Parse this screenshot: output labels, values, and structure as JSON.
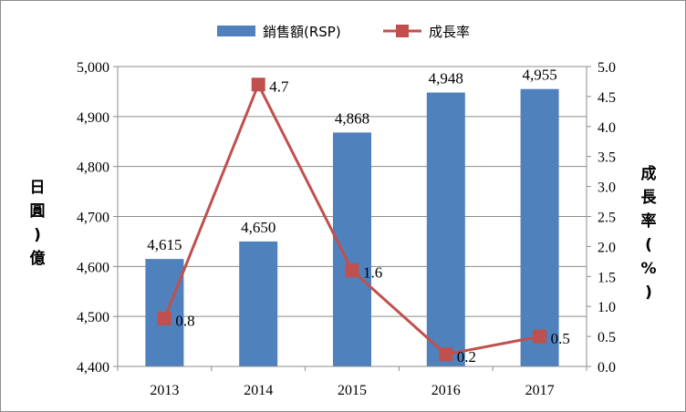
{
  "chart_data": {
    "type": "bar",
    "categories": [
      "2013",
      "2014",
      "2015",
      "2016",
      "2017"
    ],
    "series": [
      {
        "name": "銷售額(RSP)",
        "type": "bar",
        "axis": "left",
        "color": "#4f81bd",
        "values": [
          4615,
          4650,
          4868,
          4948,
          4955
        ],
        "labels": [
          "4,615",
          "4,650",
          "4,868",
          "4,948",
          "4,955"
        ]
      },
      {
        "name": "成長率",
        "type": "line",
        "axis": "right",
        "color": "#c0504d",
        "values": [
          0.8,
          4.7,
          1.6,
          0.2,
          0.5
        ],
        "labels": [
          "0.8",
          "4.7",
          "1.6",
          "0.2",
          "0.5"
        ]
      }
    ],
    "ylabel_left": [
      "日",
      "圓",
      ")",
      "億"
    ],
    "ylabel_right": [
      "成",
      "長",
      "率",
      "(",
      "%",
      ")"
    ],
    "ylim_left": [
      4400,
      5000
    ],
    "ylim_right": [
      0,
      5
    ],
    "yticks_left": [
      "4,400",
      "4,500",
      "4,600",
      "4,700",
      "4,800",
      "4,900",
      "5,000"
    ],
    "yticks_right": [
      "0.0",
      "0.5",
      "1.0",
      "1.5",
      "2.0",
      "2.5",
      "3.0",
      "3.5",
      "4.0",
      "4.5",
      "5.0"
    ],
    "grid": true,
    "legend_position": "top"
  }
}
